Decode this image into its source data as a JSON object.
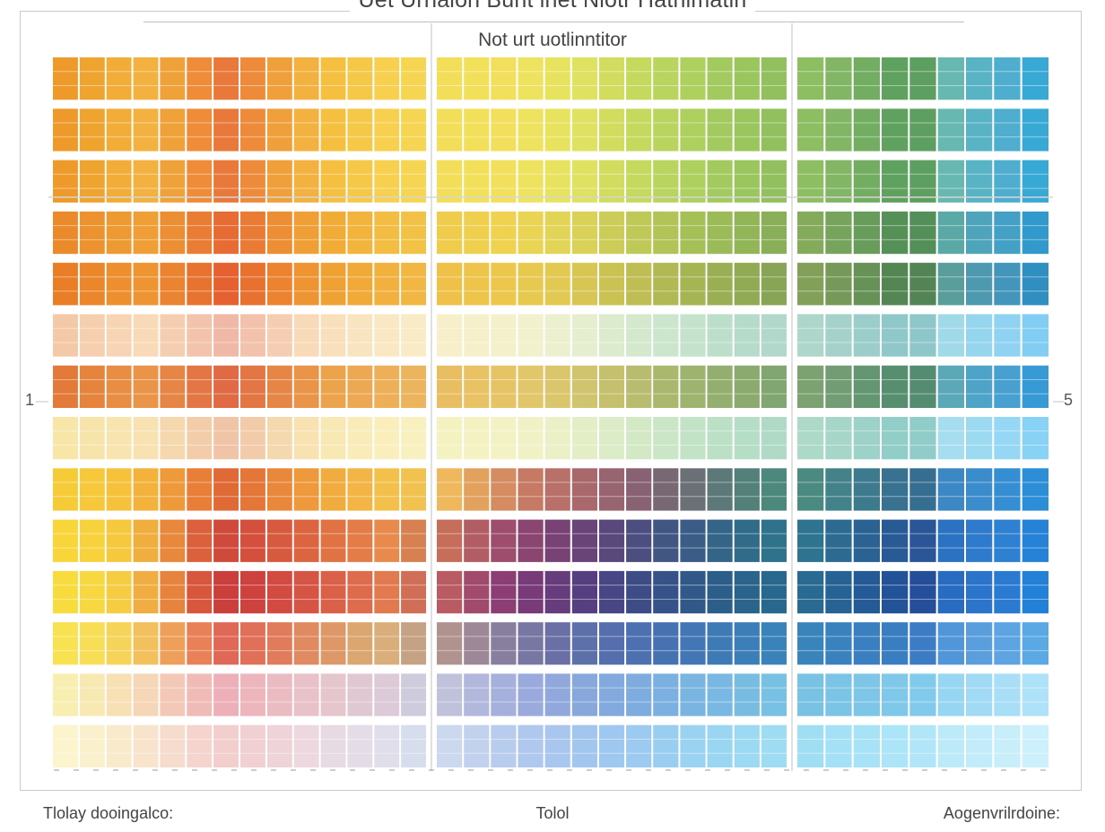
{
  "chart_data": {
    "type": "heatmap",
    "title": "Uet Urrialon Bunt inet Nlotr Hathimatin",
    "subtitle": "Not urt uotlinntitor",
    "left_tick_label": "1",
    "right_tick_label": "5",
    "footer": {
      "left": "Tlolay dooingalco:",
      "center": "Tolol",
      "right": "Aogenvrilrdoine:"
    },
    "grid": true,
    "col_groups": [
      {
        "name": "",
        "columns": 14
      },
      {
        "name": "",
        "columns": 13
      },
      {
        "name": "",
        "columns": 9
      }
    ],
    "row_bands": 14,
    "cell_colors": [
      [
        "#ee9a2a",
        "#f0a430",
        "#f2ad38",
        "#f3b140",
        "#f0a23a",
        "#ee8c3a",
        "#e9793a",
        "#ed8b3a",
        "#f0a03a",
        "#f3b140",
        "#f5c040",
        "#f6c848",
        "#f7d04f",
        "#f6d552",
        "#f3de5a",
        "#f2e05a",
        "#f2e05c",
        "#eee35f",
        "#e8e35f",
        "#dfe160",
        "#d2dd60",
        "#c5d95f",
        "#b9d45f",
        "#add05e",
        "#a3ca5e",
        "#9ac65d",
        "#92c05e",
        "#8ebe62",
        "#82b564",
        "#72ad62",
        "#5fa15e",
        "#5d9f60",
        "#66b8b0",
        "#58b3c5",
        "#4faed0",
        "#38a8d5"
      ],
      [
        "#ee9a2a",
        "#f0a430",
        "#f2ad38",
        "#f3b140",
        "#f0a23a",
        "#ee8c3a",
        "#e9793a",
        "#ed8b3a",
        "#f0a03a",
        "#f3b140",
        "#f5c040",
        "#f6c848",
        "#f7d04f",
        "#f6d552",
        "#f3de5a",
        "#f2e05a",
        "#f2e05c",
        "#eee35f",
        "#e8e35f",
        "#dfe160",
        "#d2dd60",
        "#c5d95f",
        "#b9d45f",
        "#add05e",
        "#a3ca5e",
        "#9ac65d",
        "#92c05e",
        "#8ebe62",
        "#82b564",
        "#72ad62",
        "#5fa15e",
        "#5d9f60",
        "#66b8b0",
        "#58b3c5",
        "#4faed0",
        "#38a8d5"
      ],
      [
        "#ee9a2a",
        "#f0a430",
        "#f2ad38",
        "#f3b140",
        "#f0a23a",
        "#ee8c3a",
        "#e9793a",
        "#ed8b3a",
        "#f0a03a",
        "#f3b140",
        "#f5c040",
        "#f6c848",
        "#f7d04f",
        "#f6d552",
        "#f3de5a",
        "#f2e05a",
        "#f2e05c",
        "#eee35f",
        "#e8e35f",
        "#dfe160",
        "#d2dd60",
        "#c5d95f",
        "#b9d45f",
        "#add05e",
        "#a3ca5e",
        "#9ac65d",
        "#92c05e",
        "#8ebe62",
        "#82b564",
        "#72ad62",
        "#5fa15e",
        "#5d9f60",
        "#66b8b0",
        "#58b3c5",
        "#4faed0",
        "#38a8d5"
      ],
      [
        "#ea8a2a",
        "#ec922e",
        "#ee9a32",
        "#ef9f36",
        "#ec8f34",
        "#e97d34",
        "#e66c34",
        "#e97b34",
        "#ec8e34",
        "#ef9f36",
        "#f1ac38",
        "#f2b43c",
        "#f3bc42",
        "#f2c246",
        "#f0cc4c",
        "#efd04e",
        "#eed250",
        "#e9d454",
        "#e2d456",
        "#d9d158",
        "#cccd58",
        "#bfc958",
        "#b2c458",
        "#a6c058",
        "#9bba58",
        "#92b558",
        "#89af59",
        "#84ab5c",
        "#77a45d",
        "#679c5b",
        "#559157",
        "#548f59",
        "#5aa9a6",
        "#4ea4bb",
        "#45a0c6",
        "#3199cc"
      ],
      [
        "#e97e26",
        "#eb872a",
        "#ed8f2e",
        "#ee9432",
        "#eb8430",
        "#e87230",
        "#e56230",
        "#e87130",
        "#eb8330",
        "#ee9432",
        "#f0a134",
        "#f1a938",
        "#f2b13e",
        "#f1b742",
        "#efc148",
        "#eec54a",
        "#edc74c",
        "#e8c950",
        "#e1c952",
        "#d8c654",
        "#cbc254",
        "#bebe54",
        "#b1b954",
        "#a5b554",
        "#9aaf54",
        "#91aa54",
        "#88a455",
        "#83a058",
        "#769959",
        "#669157",
        "#548653",
        "#538455",
        "#599e9b",
        "#4d99b0",
        "#4495bb",
        "#308ec1"
      ],
      [
        "#f4c9a8",
        "#f5cfae",
        "#f7d5b4",
        "#f8d9b8",
        "#f5ceb2",
        "#f3c3ac",
        "#f0b8a6",
        "#f2c2ac",
        "#f5cdb2",
        "#f8d9b8",
        "#f9e0bc",
        "#f9e4c0",
        "#fae8c4",
        "#f9ebc6",
        "#f6efca",
        "#f5f0ca",
        "#f4f0cc",
        "#f1f1ce",
        "#ecf0ce",
        "#e5eece",
        "#dcebce",
        "#d4e8ce",
        "#cce5cd",
        "#c4e2cc",
        "#bddecb",
        "#b7dbca",
        "#b1d8ca",
        "#aed6cb",
        "#a5d1cb",
        "#9bcdca",
        "#8fc8c8",
        "#8dc7c9",
        "#a0dae8",
        "#96d5ee",
        "#8fd2f2",
        "#82cdf4"
      ],
      [
        "#e47a3a",
        "#e6843e",
        "#e88e44",
        "#e99448",
        "#e68646",
        "#e37644",
        "#e06a44",
        "#e27644",
        "#e58646",
        "#e99448",
        "#eba44c",
        "#eca852",
        "#edb058",
        "#ecb45c",
        "#e9be62",
        "#e8c264",
        "#e6c466",
        "#e1c66a",
        "#dac66c",
        "#d1c46e",
        "#c4c06e",
        "#b7bc6e",
        "#aab86e",
        "#9eb46e",
        "#93ae6e",
        "#8aaa6e",
        "#82a670",
        "#7da272",
        "#729c74",
        "#649672",
        "#568e70",
        "#548c72",
        "#5aa8b8",
        "#4ea4c8",
        "#48a0d0",
        "#389ad4"
      ],
      [
        "#f7e6a8",
        "#f7e4aa",
        "#f8e4ae",
        "#f8e2b2",
        "#f5d8ae",
        "#f3ccaa",
        "#f0c4a6",
        "#f2ccaa",
        "#f4d8ae",
        "#f8e2b2",
        "#f8e8b4",
        "#f9ecb8",
        "#f9eebc",
        "#f8f0be",
        "#f5f2c2",
        "#f4f2c2",
        "#f3f2c4",
        "#f0f2c6",
        "#ebf0c6",
        "#e4eec6",
        "#dbecc6",
        "#d3e9c6",
        "#cbe6c6",
        "#c3e3c6",
        "#bce0c6",
        "#b6ddc6",
        "#b0dac6",
        "#addac8",
        "#a6d6c8",
        "#9dd2c8",
        "#92cec8",
        "#90ccc8",
        "#a6def0",
        "#9cdaf2",
        "#95d7f4",
        "#88d2f6"
      ],
      [
        "#f5cc38",
        "#f6c83a",
        "#f6c23c",
        "#f3b23c",
        "#ef9a3a",
        "#e87e38",
        "#e06a36",
        "#e47638",
        "#e9883a",
        "#ee9a3c",
        "#f1ac40",
        "#f3b646",
        "#f4c04c",
        "#f2c250",
        "#efb85c",
        "#e2a25e",
        "#d48c60",
        "#c67a64",
        "#b87068",
        "#a8686c",
        "#986470",
        "#886272",
        "#786874",
        "#6a7076",
        "#5c7878",
        "#54807a",
        "#4c887c",
        "#4a8a80",
        "#44828a",
        "#3e7a8e",
        "#387290",
        "#366e92",
        "#3c88c4",
        "#3a8ccc",
        "#368ed2",
        "#2c8ed6"
      ],
      [
        "#f8d63a",
        "#f8d23c",
        "#f6c83e",
        "#f0ae3e",
        "#e8883c",
        "#dc603c",
        "#d04a3c",
        "#d4503c",
        "#d85a3e",
        "#dc6440",
        "#e07244",
        "#e47c48",
        "#e88a4c",
        "#d88050",
        "#c66e5a",
        "#b25c64",
        "#9e4e6c",
        "#8a4670",
        "#784274",
        "#684478",
        "#58487c",
        "#4c4e80",
        "#425684",
        "#3a5c86",
        "#346488",
        "#306c8a",
        "#2e728c",
        "#2e7490",
        "#2c6a92",
        "#2a6294",
        "#285a96",
        "#2a5698",
        "#2c72c2",
        "#2e7acc",
        "#2e80d2",
        "#2682d6"
      ],
      [
        "#f8dc3e",
        "#f8d840",
        "#f6cc42",
        "#f0ae42",
        "#e6843e",
        "#d8563c",
        "#ca3e3c",
        "#ce423e",
        "#d24a40",
        "#d65444",
        "#da6048",
        "#de6c4c",
        "#e27a50",
        "#d06e56",
        "#ba5a62",
        "#a24a6c",
        "#8c3e74",
        "#783a78",
        "#663c7c",
        "#563f80",
        "#484684",
        "#3e4c86",
        "#365288",
        "#305888",
        "#2c5e8a",
        "#2a648c",
        "#28688e",
        "#286a92",
        "#266294",
        "#245a96",
        "#225298",
        "#244e9a",
        "#286cc2",
        "#2a74cc",
        "#2a7ad2",
        "#2280d6"
      ],
      [
        "#f8e252",
        "#f8de56",
        "#f6d45a",
        "#f2c05c",
        "#eea05a",
        "#e88058",
        "#e06856",
        "#e07058",
        "#e07c5c",
        "#e08a62",
        "#de9868",
        "#dca670",
        "#daae7a",
        "#c6a284",
        "#b0928e",
        "#9c8896",
        "#887e9e",
        "#7876a2",
        "#6a70a6",
        "#5e70aa",
        "#546eae",
        "#4c70b0",
        "#4672b2",
        "#4276b4",
        "#3e7ab6",
        "#3c7eb8",
        "#3a82ba",
        "#3a84bc",
        "#3a82be",
        "#3a80c0",
        "#3a7ec2",
        "#3c7cc4",
        "#5096d8",
        "#5a9ede",
        "#5ea4e2",
        "#5aa8e4"
      ],
      [
        "#f8eeb0",
        "#f8e8b2",
        "#f7e0b4",
        "#f5d6b6",
        "#f3c8b6",
        "#f0bab6",
        "#edb0b8",
        "#ecb6bc",
        "#eabcc2",
        "#e8c2c8",
        "#e4c6cc",
        "#e0c8d2",
        "#dccad8",
        "#ceccdc",
        "#c0c2dc",
        "#b2b8dc",
        "#a6b0dc",
        "#9aaadc",
        "#90a8dc",
        "#88a8dc",
        "#82aade",
        "#7eacde",
        "#7cb0e0",
        "#7ab4e0",
        "#78b8e2",
        "#78bce2",
        "#78c0e4",
        "#7ac2e4",
        "#7cc4e6",
        "#7ec6e8",
        "#80c8ea",
        "#82caec",
        "#96d6f2",
        "#a0daf4",
        "#a8def6",
        "#aee2f8"
      ],
      [
        "#fbf4cc",
        "#faf0cc",
        "#f9eacc",
        "#f8e4cc",
        "#f6dccc",
        "#f4d4cc",
        "#f2cecc",
        "#f0d0d2",
        "#eed4d8",
        "#ecd8de",
        "#e8dae2",
        "#e4dce6",
        "#e0deea",
        "#d6deee",
        "#ccd8ee",
        "#c2d2ee",
        "#b8ccee",
        "#b0c8ee",
        "#a8c6ee",
        "#a2c6ee",
        "#9ec8f0",
        "#9ccaf0",
        "#9acef0",
        "#9ad2f2",
        "#9ad6f2",
        "#9cdaf4",
        "#9edcf4",
        "#a0def4",
        "#a4e0f6",
        "#a8e2f6",
        "#ace4f8",
        "#b0e6f8",
        "#bceaf8",
        "#c2ecfa",
        "#c8eefa",
        "#ccf0fc"
      ]
    ]
  }
}
